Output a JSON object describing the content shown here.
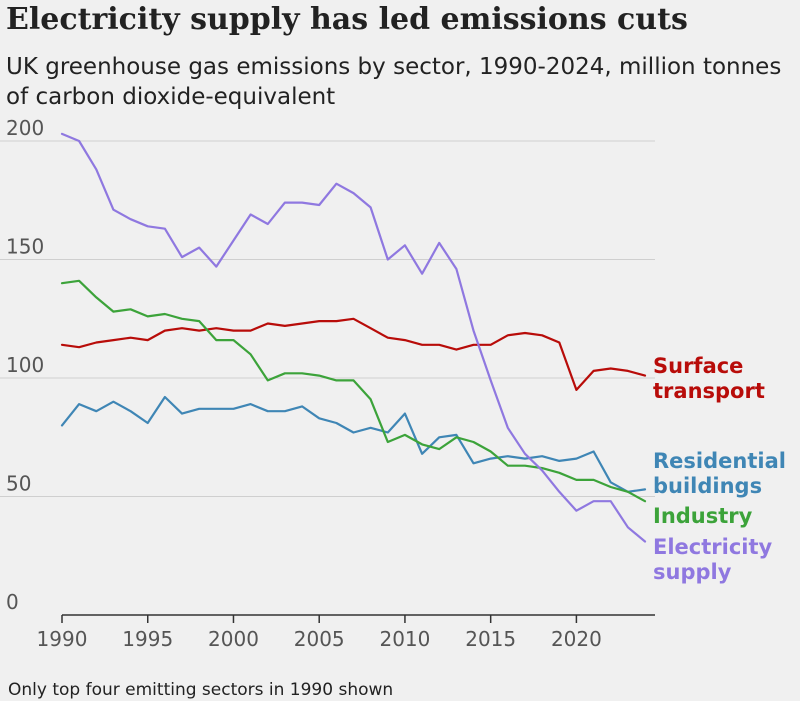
{
  "title": "Electricity supply has led emissions cuts",
  "subtitle": "UK greenhouse gas emissions by sector, 1990-2024, million tonnes of carbon dioxide-equivalent",
  "footnote": "Only top four emitting sectors in 1990 shown",
  "chart_data": {
    "type": "line",
    "x": [
      1990,
      1991,
      1992,
      1993,
      1994,
      1995,
      1996,
      1997,
      1998,
      1999,
      2000,
      2001,
      2002,
      2003,
      2004,
      2005,
      2006,
      2007,
      2008,
      2009,
      2010,
      2011,
      2012,
      2013,
      2014,
      2015,
      2016,
      2017,
      2018,
      2019,
      2020,
      2021,
      2022,
      2023,
      2024
    ],
    "xlim": [
      1990,
      2024
    ],
    "ylim": [
      0,
      200
    ],
    "x_ticks": [
      1990,
      1995,
      2000,
      2005,
      2010,
      2015,
      2020
    ],
    "y_ticks": [
      0,
      50,
      100,
      150,
      200
    ],
    "grid": "horizontal",
    "series": [
      {
        "name": "Surface transport",
        "label_lines": [
          "Surface",
          "transport"
        ],
        "color": "#b80c09",
        "values": [
          114,
          113,
          115,
          116,
          117,
          116,
          120,
          121,
          120,
          121,
          120,
          120,
          123,
          122,
          123,
          124,
          124,
          125,
          121,
          117,
          116,
          114,
          114,
          112,
          114,
          114,
          118,
          119,
          118,
          115,
          95,
          103,
          104,
          103,
          101
        ]
      },
      {
        "name": "Residential buildings",
        "label_lines": [
          "Residential",
          "buildings"
        ],
        "color": "#3f86b5",
        "values": [
          80,
          89,
          86,
          90,
          86,
          81,
          92,
          85,
          87,
          87,
          87,
          89,
          86,
          86,
          88,
          83,
          81,
          77,
          79,
          77,
          85,
          68,
          75,
          76,
          64,
          66,
          67,
          66,
          67,
          65,
          66,
          69,
          56,
          52,
          53
        ]
      },
      {
        "name": "Industry",
        "label_lines": [
          "Industry"
        ],
        "color": "#3ca33a",
        "values": [
          140,
          141,
          134,
          128,
          129,
          126,
          127,
          125,
          124,
          116,
          116,
          110,
          99,
          102,
          102,
          101,
          99,
          99,
          91,
          73,
          76,
          72,
          70,
          75,
          73,
          69,
          63,
          63,
          62,
          60,
          57,
          57,
          54,
          52,
          48
        ]
      },
      {
        "name": "Electricity supply",
        "label_lines": [
          "Electricity",
          "supply"
        ],
        "color": "#8f78e0",
        "values": [
          203,
          200,
          188,
          171,
          167,
          164,
          163,
          151,
          155,
          147,
          158,
          169,
          165,
          174,
          174,
          173,
          182,
          178,
          172,
          150,
          156,
          144,
          157,
          146,
          120,
          99,
          79,
          68,
          61,
          52,
          44,
          48,
          48,
          37,
          31
        ]
      }
    ]
  }
}
